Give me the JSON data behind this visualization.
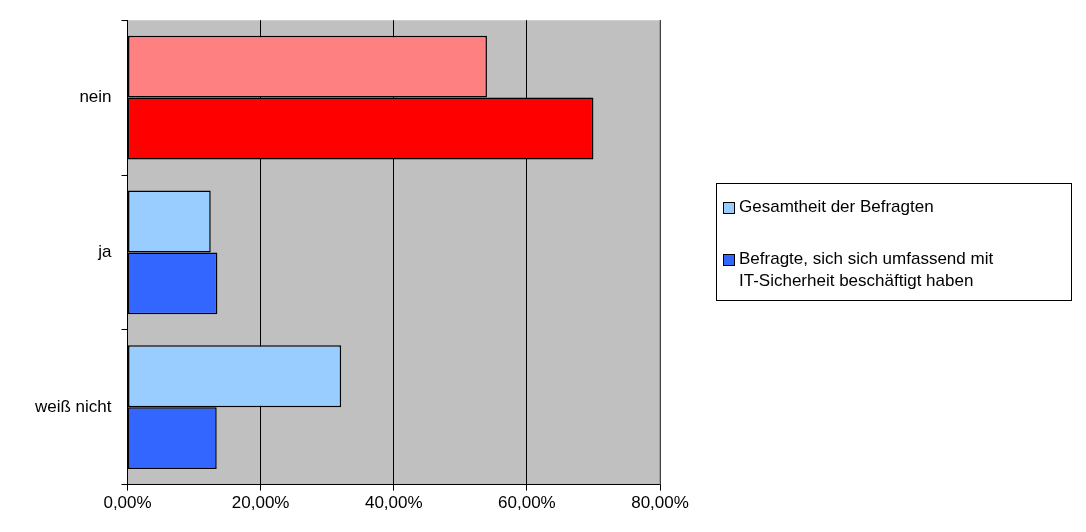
{
  "chart_data": {
    "type": "bar",
    "orientation": "horizontal",
    "categories": [
      "nein",
      "ja",
      "weiß nicht"
    ],
    "series": [
      {
        "name": "Gesamtheit der Befragten",
        "color": "#99ccff",
        "colors": [
          "#ff8080",
          "#99ccff",
          "#99ccff"
        ],
        "values": [
          54.0,
          12.5,
          32.1
        ]
      },
      {
        "name": "Befragte, sich sich umfassend mit IT-Sicherheit beschäftigt haben",
        "color": "#3366ff",
        "colors": [
          "#ff0000",
          "#3366ff",
          "#3366ff"
        ],
        "values": [
          70.0,
          13.5,
          13.4
        ]
      }
    ],
    "xlim": [
      0,
      80
    ],
    "xticks": [
      {
        "value": 0,
        "label": "0,00%"
      },
      {
        "value": 20,
        "label": "20,00%"
      },
      {
        "value": 40,
        "label": "40,00%"
      },
      {
        "value": 60,
        "label": "60,00%"
      },
      {
        "value": 80,
        "label": "80,00%"
      }
    ],
    "grid": "x",
    "legend": "right"
  }
}
